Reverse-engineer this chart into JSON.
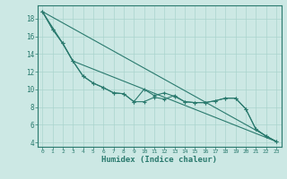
{
  "xlabel": "Humidex (Indice chaleur)",
  "ylabel": "",
  "bg_color": "#cce8e4",
  "line_color": "#2a7a6e",
  "grid_color": "#aad4ce",
  "xlim": [
    -0.5,
    23.5
  ],
  "ylim": [
    3.5,
    19.5
  ],
  "xticks": [
    0,
    1,
    2,
    3,
    4,
    5,
    6,
    7,
    8,
    9,
    10,
    11,
    12,
    13,
    14,
    15,
    16,
    17,
    18,
    19,
    20,
    21,
    22,
    23
  ],
  "yticks": [
    4,
    6,
    8,
    10,
    12,
    14,
    16,
    18
  ],
  "line1_x": [
    0,
    1,
    2,
    3,
    4,
    5,
    6,
    7,
    8,
    9,
    10,
    11,
    12,
    13,
    14,
    15,
    16,
    17,
    18,
    19,
    20,
    21,
    22,
    23
  ],
  "line1_y": [
    18.8,
    16.8,
    15.2,
    13.2,
    11.5,
    10.7,
    10.2,
    9.6,
    9.5,
    8.6,
    8.6,
    9.1,
    8.9,
    9.3,
    8.6,
    8.5,
    8.5,
    8.7,
    9.0,
    9.0,
    7.8,
    5.5,
    4.7,
    4.1
  ],
  "line2_x": [
    0,
    1,
    2,
    3,
    4,
    5,
    6,
    7,
    8,
    9,
    10,
    11,
    12,
    13,
    14,
    15,
    16,
    17,
    18,
    19,
    20,
    21,
    22,
    23
  ],
  "line2_y": [
    18.8,
    16.8,
    15.2,
    13.2,
    11.5,
    10.7,
    10.2,
    9.6,
    9.5,
    8.6,
    10.0,
    9.3,
    9.6,
    9.2,
    8.6,
    8.5,
    8.5,
    8.7,
    9.0,
    9.0,
    7.8,
    5.5,
    4.7,
    4.1
  ],
  "line3_x": [
    0,
    2,
    3,
    23
  ],
  "line3_y": [
    18.8,
    15.2,
    13.2,
    4.1
  ],
  "line4_x": [
    0,
    23
  ],
  "line4_y": [
    18.8,
    4.1
  ]
}
